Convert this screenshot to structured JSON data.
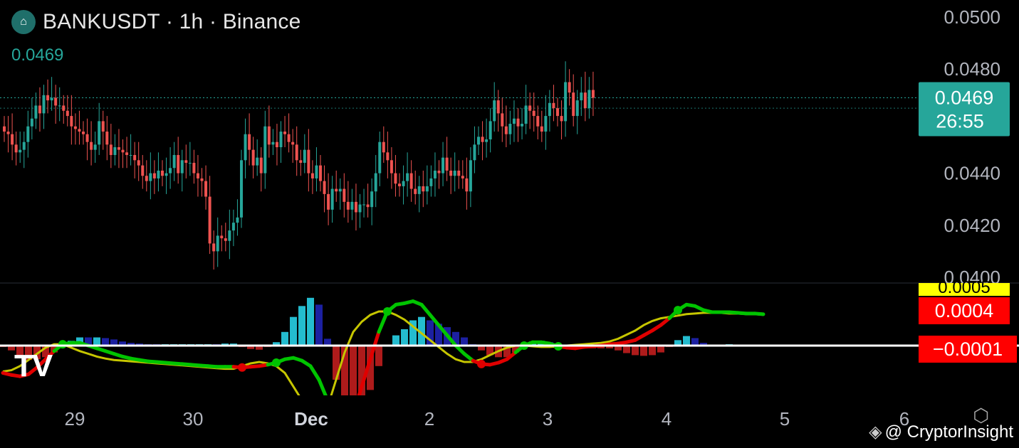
{
  "header": {
    "symbol_line": "BANKUSDT · 1h · Binance",
    "last_price": "0.0469",
    "logo_icon": "bank-token-logo-icon"
  },
  "price_tag": {
    "price": "0.0469",
    "countdown": "26:55",
    "color": "#26a69a"
  },
  "watermark": "TV",
  "credit": "@ CryptorInsight",
  "colors": {
    "up": "#26a69a",
    "down": "#ef5350",
    "macd_up_strong": "#26c6da",
    "macd_up_weak": "#1e22aa",
    "macd_down_strong": "#b71c1c",
    "macd_down_weak": "#b71c1c",
    "macd_line_up": "#00c400",
    "macd_line_down": "#e00000",
    "signal_line": "#c6c600",
    "zero_line": "#ffffff",
    "tag_yellow": "#ffff00",
    "tag_red": "#ff0000"
  },
  "chart_data": [
    {
      "type": "candlestick",
      "title": "BANKUSDT · 1h · Binance",
      "y_axis": {
        "ticks": [
          "0.0500",
          "0.0480",
          "0.0440",
          "0.0420",
          "0.0400"
        ],
        "ylim": [
          0.04,
          0.05
        ]
      },
      "x_axis": {
        "ticks": [
          "29",
          "30",
          "Dec",
          "2",
          "3",
          "4",
          "5",
          "6"
        ]
      },
      "last_price": 0.0469,
      "closes_by_hour": [
        0.0456,
        0.0455,
        0.0451,
        0.0448,
        0.0449,
        0.0452,
        0.0458,
        0.0461,
        0.0466,
        0.0463,
        0.047,
        0.0468,
        0.0469,
        0.0466,
        0.0466,
        0.0464,
        0.0462,
        0.0458,
        0.0457,
        0.0456,
        0.0455,
        0.0452,
        0.0449,
        0.0451,
        0.046,
        0.0456,
        0.0451,
        0.0447,
        0.045,
        0.0449,
        0.0448,
        0.0447,
        0.0447,
        0.0445,
        0.0443,
        0.0439,
        0.0437,
        0.044,
        0.0438,
        0.0441,
        0.0439,
        0.044,
        0.0442,
        0.0447,
        0.044,
        0.0445,
        0.0444,
        0.0444,
        0.044,
        0.0438,
        0.0437,
        0.0431,
        0.0413,
        0.041,
        0.0416,
        0.0415,
        0.0414,
        0.0418,
        0.0421,
        0.0423,
        0.0445,
        0.0455,
        0.0449,
        0.0443,
        0.0446,
        0.044,
        0.0458,
        0.0451,
        0.0452,
        0.045,
        0.0456,
        0.0455,
        0.0452,
        0.0451,
        0.0445,
        0.0444,
        0.0449,
        0.044,
        0.0438,
        0.0443,
        0.0437,
        0.0432,
        0.0426,
        0.0434,
        0.0433,
        0.0434,
        0.0429,
        0.0426,
        0.0429,
        0.0425,
        0.0428,
        0.0428,
        0.0427,
        0.0433,
        0.044,
        0.0452,
        0.0448,
        0.0445,
        0.044,
        0.0436,
        0.0435,
        0.0437,
        0.044,
        0.0434,
        0.0432,
        0.0435,
        0.0433,
        0.0435,
        0.0438,
        0.0441,
        0.044,
        0.0446,
        0.0441,
        0.0439,
        0.0441,
        0.0439,
        0.0438,
        0.0433,
        0.0445,
        0.0451,
        0.0454,
        0.0452,
        0.0453,
        0.046,
        0.0468,
        0.0463,
        0.0458,
        0.0455,
        0.0459,
        0.0461,
        0.0458,
        0.0459,
        0.0466,
        0.0464,
        0.0462,
        0.0458,
        0.0456,
        0.0462,
        0.0467,
        0.0465,
        0.0462,
        0.046,
        0.0475,
        0.0471,
        0.0462,
        0.0468,
        0.0471,
        0.0465,
        0.0472,
        0.0469
      ]
    },
    {
      "type": "macd",
      "panel_tags": [
        "0.0005",
        "0.0004",
        "−0.0001"
      ],
      "macd_line_by_hour": [
        -0.0004,
        -0.00043,
        -0.00045,
        -0.00042,
        -0.00032,
        -0.0002,
        -8e-05,
        2e-05,
        4e-05,
        4e-05,
        0.0,
        -4e-05,
        -8e-05,
        -0.00012,
        -0.00016,
        -0.00019,
        -0.00021,
        -0.00023,
        -0.00024,
        -0.00025,
        -0.00026,
        -0.00027,
        -0.00028,
        -0.00029,
        -0.0003,
        -0.00031,
        -0.00031,
        -0.00031,
        -0.00032,
        -0.00031,
        -0.0003,
        -0.00028,
        -0.00025,
        -0.0002,
        -0.00018,
        -0.00022,
        -0.0003,
        -0.0005,
        -0.0008,
        -0.001,
        -0.0011,
        -0.001,
        -0.0006,
        -0.0002,
        0.0002,
        0.0005,
        0.0006,
        0.00062,
        0.00065,
        0.0006,
        0.00045,
        0.0003,
        0.00015,
        0.0,
        -0.00012,
        -0.00022,
        -0.00027,
        -0.00028,
        -0.00025,
        -0.0002,
        -0.0001,
        0.0,
        5e-05,
        5e-05,
        3e-05,
        -1e-05,
        -3e-05,
        -4e-05,
        -2e-05,
        -1e-05,
        0.0,
        2e-05,
        3e-05,
        5e-05,
        8e-05,
        0.00015,
        0.00022,
        0.0003,
        0.0004,
        0.00052,
        0.0006,
        0.00058,
        0.00052,
        0.00049,
        0.00049,
        0.00049,
        0.00048,
        0.00047,
        0.00047,
        0.00046
      ],
      "signal_line_by_hour": [
        -0.00038,
        -0.00036,
        -0.0003,
        -0.00021,
        -0.00012,
        -3e-05,
        2e-05,
        2e-05,
        -3e-05,
        -8e-05,
        -0.00012,
        -0.00016,
        -0.00019,
        -0.00021,
        -0.00022,
        -0.00023,
        -0.00024,
        -0.00025,
        -0.00026,
        -0.00027,
        -0.00028,
        -0.00029,
        -0.0003,
        -0.00031,
        -0.00032,
        -0.00033,
        -0.00034,
        -0.00034,
        -0.0003,
        -0.00026,
        -0.00024,
        -0.00026,
        -0.0003,
        -0.0004,
        -0.0006,
        -0.0008,
        -0.001,
        -0.0011,
        -0.0009,
        -0.0005,
        -0.0001,
        0.0002,
        0.00035,
        0.00045,
        0.0005,
        0.0005,
        0.00045,
        0.00038,
        0.00028,
        0.00018,
        8e-05,
        -2e-05,
        -0.00012,
        -0.0002,
        -0.00024,
        -0.00024,
        -0.0002,
        -0.00014,
        -8e-05,
        -3e-05,
        0.0,
        0.0,
        -1e-05,
        -2e-05,
        -2e-05,
        -1e-05,
        0.0,
        1e-05,
        2e-05,
        3e-05,
        4e-05,
        6e-05,
        0.0001,
        0.00016,
        0.00022,
        0.0003,
        0.00036,
        0.0004,
        0.00042,
        0.00044,
        0.00046,
        0.00047,
        0.00048,
        0.00048,
        0.00048,
        0.00047,
        0.00047,
        0.00046,
        0.00046,
        0.00045
      ]
    }
  ]
}
